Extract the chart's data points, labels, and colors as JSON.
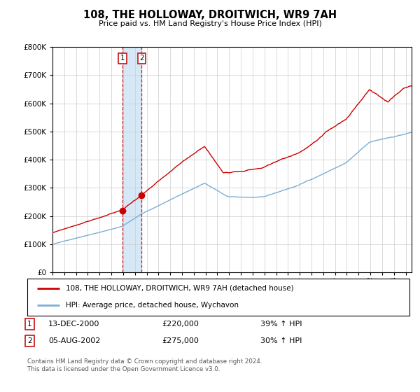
{
  "title": "108, THE HOLLOWAY, DROITWICH, WR9 7AH",
  "subtitle": "Price paid vs. HM Land Registry's House Price Index (HPI)",
  "legend_line1": "108, THE HOLLOWAY, DROITWICH, WR9 7AH (detached house)",
  "legend_line2": "HPI: Average price, detached house, Wychavon",
  "annotation1_date": "13-DEC-2000",
  "annotation1_price": "£220,000",
  "annotation1_hpi": "39% ↑ HPI",
  "annotation2_date": "05-AUG-2002",
  "annotation2_price": "£275,000",
  "annotation2_hpi": "30% ↑ HPI",
  "footer": "Contains HM Land Registry data © Crown copyright and database right 2024.\nThis data is licensed under the Open Government Licence v3.0.",
  "hpi_color": "#7aaed6",
  "price_color": "#cc0000",
  "shade_color": "#d6e8f5",
  "annotation_box_color": "#cc2222",
  "ylim": [
    0,
    800000
  ],
  "yticks": [
    0,
    100000,
    200000,
    300000,
    400000,
    500000,
    600000,
    700000,
    800000
  ],
  "purchase1_year": 2000.96,
  "purchase2_year": 2002.58,
  "purchase1_price": 220000,
  "purchase2_price": 275000,
  "hpi_seed": 42,
  "prop_seed": 99
}
